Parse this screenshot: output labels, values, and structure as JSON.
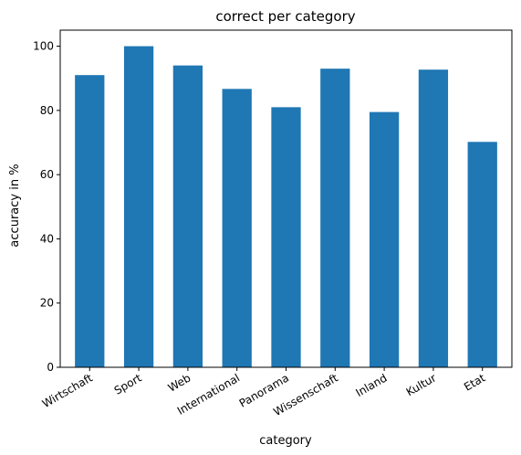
{
  "chart_data": {
    "type": "bar",
    "title": "correct per category",
    "xlabel": "category",
    "ylabel": "accuracy in %",
    "categories": [
      "Wirtschaft",
      "Sport",
      "Web",
      "International",
      "Panorama",
      "Wissenschaft",
      "Inland",
      "Kultur",
      "Etat"
    ],
    "values": [
      91.0,
      100.0,
      94.0,
      86.7,
      81.0,
      93.0,
      79.5,
      92.7,
      70.2
    ],
    "ylim": [
      0,
      105
    ],
    "yticks": [
      0,
      20,
      40,
      60,
      80,
      100
    ],
    "bar_color": "#1f77b4",
    "grid": false,
    "legend": "none"
  }
}
